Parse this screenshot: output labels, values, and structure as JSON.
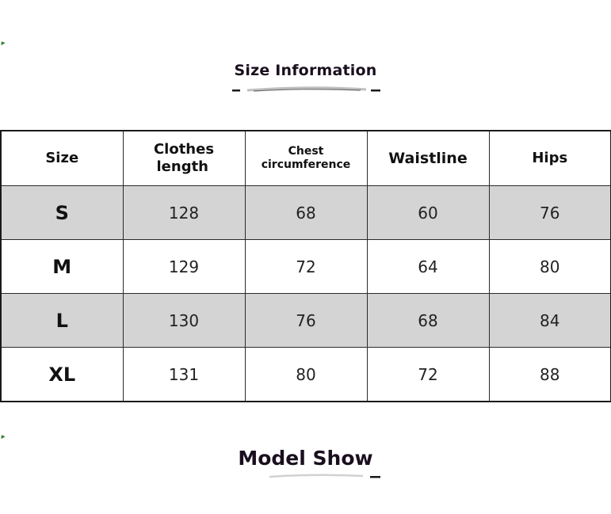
{
  "size_info": {
    "title": "Size Information",
    "columns": [
      "Size",
      "Clothes length",
      "Chest circumference",
      "Waistline",
      "Hips"
    ],
    "column_lines": {
      "length_1": "Clothes",
      "length_2": "length",
      "chest_1": "Chest",
      "chest_2": "circumference"
    },
    "rows": [
      {
        "size": "S",
        "length": "128",
        "chest": "68",
        "waist": "60",
        "hips": "76"
      },
      {
        "size": "M",
        "length": "129",
        "chest": "72",
        "waist": "64",
        "hips": "80"
      },
      {
        "size": "L",
        "length": "130",
        "chest": "76",
        "waist": "68",
        "hips": "84"
      },
      {
        "size": "XL",
        "length": "131",
        "chest": "80",
        "waist": "72",
        "hips": "88"
      }
    ]
  },
  "model_show": {
    "title": "Model Show"
  },
  "colors": {
    "shaded_row": "#d4d4d4",
    "border": "#2a2a2a",
    "title_text": "#1a0f1e",
    "corner_mark": "#2e7d32"
  }
}
